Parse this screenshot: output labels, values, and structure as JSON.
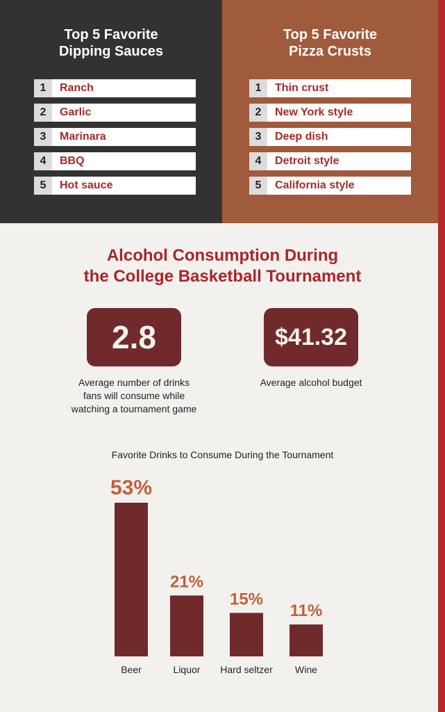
{
  "colors": {
    "dark_panel": "#323232",
    "rust_panel": "#a05a3c",
    "maroon": "#702a2c",
    "accent_red": "#a8262a",
    "percent_orange": "#c0603a",
    "background": "#f3f1ee"
  },
  "sauces": {
    "title": "Top 5 Favorite\nDipping Sauces",
    "items": [
      {
        "rank": "1",
        "label": "Ranch"
      },
      {
        "rank": "2",
        "label": "Garlic"
      },
      {
        "rank": "3",
        "label": "Marinara"
      },
      {
        "rank": "4",
        "label": "BBQ"
      },
      {
        "rank": "5",
        "label": "Hot sauce"
      }
    ]
  },
  "crusts": {
    "title": "Top 5 Favorite\nPizza Crusts",
    "items": [
      {
        "rank": "1",
        "label": "Thin crust"
      },
      {
        "rank": "2",
        "label": "New York style"
      },
      {
        "rank": "3",
        "label": "Deep dish"
      },
      {
        "rank": "4",
        "label": "Detroit style"
      },
      {
        "rank": "5",
        "label": "California style"
      }
    ]
  },
  "alcohol": {
    "title": "Alcohol Consumption During\nthe College Basketball Tournament",
    "stat1": {
      "value": "2.8",
      "caption": "Average number of drinks\nfans will consume while\nwatching a tournament game"
    },
    "stat2": {
      "value": "$41.32",
      "caption": "Average alcohol budget"
    }
  },
  "chart_data": {
    "type": "bar",
    "title": "Favorite Drinks to Consume During the Tournament",
    "categories": [
      "Beer",
      "Liquor",
      "Hard seltzer",
      "Wine"
    ],
    "values": [
      53,
      21,
      15,
      11
    ],
    "value_labels": [
      "53%",
      "21%",
      "15%",
      "11%"
    ],
    "unit": "%",
    "ylim": [
      0,
      53
    ],
    "grid": false,
    "xlabel": "",
    "ylabel": ""
  }
}
